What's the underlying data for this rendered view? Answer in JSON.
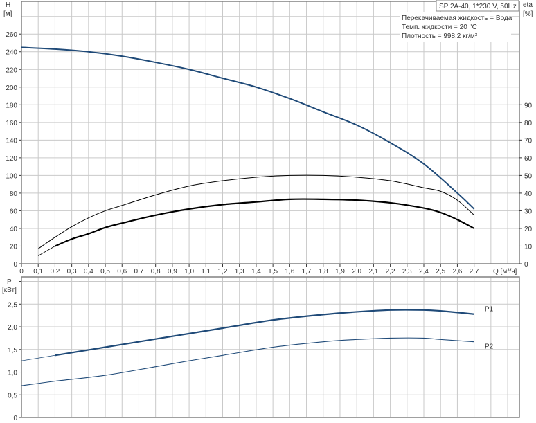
{
  "colors": {
    "curve_blue": "#1f4a78",
    "curve_black": "#000000",
    "grid": "#c9c9c9",
    "axis": "#808080"
  },
  "legend_box": "SP 2A-40, 1*230 V, 50Hz",
  "info_lines": [
    "Перекачиваемая жидкость = Вода",
    "Темп. жидкости = 20 °C",
    "Плотность = 998.2 кг/м³"
  ],
  "chart_data": [
    {
      "type": "line",
      "xlabel": "Q [м³/ч]",
      "ylabel": "H",
      "ylabel_unit": "[м]",
      "y2label": "eta",
      "y2label_unit": "[%]",
      "xlim": [
        0,
        2.97
      ],
      "ylim": [
        0,
        297
      ],
      "y2lim": [
        0,
        148.5
      ],
      "grid": true,
      "x_ticks": [
        "0",
        "0,1",
        "0,2",
        "0,3",
        "0,4",
        "0,5",
        "0,6",
        "0,7",
        "0,8",
        "0,9",
        "1,0",
        "1,1",
        "1,2",
        "1,3",
        "1,4",
        "1,5",
        "1,6",
        "1,7",
        "1,8",
        "1,9",
        "2,0",
        "2,1",
        "2,2",
        "2,3",
        "2,4",
        "2,5",
        "2,6",
        "2,7"
      ],
      "y_ticks": [
        0,
        20,
        40,
        60,
        80,
        100,
        120,
        140,
        160,
        180,
        200,
        220,
        240,
        260
      ],
      "y2_ticks": [
        0,
        10,
        20,
        30,
        40,
        50,
        60,
        70,
        80,
        90
      ],
      "series": [
        {
          "id": "H",
          "axis": "left",
          "color": "#1f4a78",
          "x": [
            0,
            0.2,
            0.4,
            0.6,
            0.8,
            1.0,
            1.2,
            1.4,
            1.6,
            1.8,
            2.0,
            2.2,
            2.4,
            2.6,
            2.7
          ],
          "y": [
            245,
            243,
            240,
            235,
            228,
            220,
            210,
            200,
            187,
            172,
            157,
            137,
            113,
            80,
            62
          ]
        },
        {
          "id": "eta1",
          "axis": "right",
          "color": "#000000",
          "x": [
            0.1,
            0.2,
            0.3,
            0.4,
            0.5,
            0.6,
            0.8,
            1.0,
            1.2,
            1.4,
            1.6,
            1.8,
            2.0,
            2.2,
            2.4,
            2.5,
            2.6,
            2.7
          ],
          "y": [
            8.5,
            15,
            21,
            26,
            30,
            33,
            39,
            44,
            47,
            49,
            50,
            50,
            49,
            47,
            43,
            41,
            36,
            27.5
          ]
        },
        {
          "id": "eta2",
          "axis": "right",
          "color": "#000000",
          "bold_from": 0.2,
          "x": [
            0.1,
            0.2,
            0.3,
            0.4,
            0.5,
            0.6,
            0.8,
            1.0,
            1.2,
            1.4,
            1.6,
            1.8,
            2.0,
            2.2,
            2.4,
            2.5,
            2.6,
            2.7
          ],
          "y": [
            4.5,
            10,
            14,
            17,
            20.5,
            23,
            27.5,
            31,
            33.5,
            35,
            36.5,
            36.5,
            36,
            34.5,
            31.5,
            29,
            25,
            20
          ]
        }
      ]
    },
    {
      "type": "line",
      "ylabel": "P",
      "ylabel_unit": "[кВт]",
      "xlim": [
        0,
        2.97
      ],
      "ylim": [
        0,
        3.1
      ],
      "grid": true,
      "y_ticks": [
        "0",
        "0,5",
        "1,0",
        "1,5",
        "2,0",
        "2,5"
      ],
      "series": [
        {
          "name": "P1",
          "color": "#1f4a78",
          "bold_from": 0.2,
          "x": [
            0,
            0.2,
            0.5,
            0.8,
            1.0,
            1.2,
            1.5,
            1.8,
            2.0,
            2.2,
            2.4,
            2.5,
            2.7
          ],
          "y": [
            1.25,
            1.37,
            1.55,
            1.73,
            1.85,
            1.97,
            2.15,
            2.27,
            2.33,
            2.37,
            2.37,
            2.35,
            2.28
          ]
        },
        {
          "name": "P2",
          "color": "#1f4a78",
          "x": [
            0,
            0.2,
            0.5,
            0.8,
            1.0,
            1.2,
            1.5,
            1.8,
            2.0,
            2.2,
            2.4,
            2.5,
            2.7
          ],
          "y": [
            0.7,
            0.8,
            0.93,
            1.12,
            1.25,
            1.37,
            1.55,
            1.67,
            1.72,
            1.75,
            1.75,
            1.72,
            1.67
          ]
        }
      ]
    }
  ]
}
